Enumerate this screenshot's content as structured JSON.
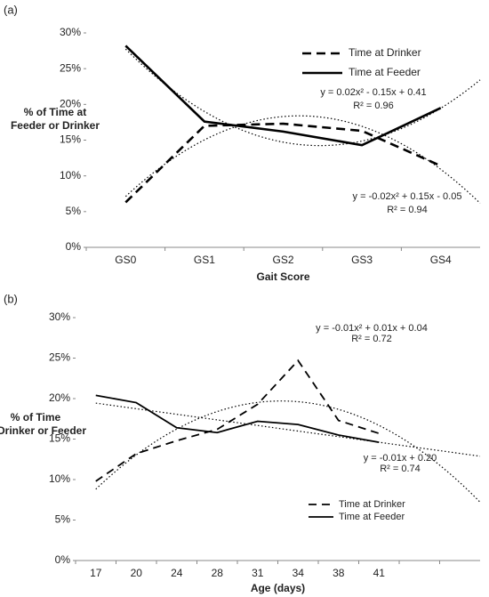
{
  "chart_data": [
    {
      "type": "line",
      "panel_label": "(a)",
      "ylabel": [
        "% of Time at",
        "Feeder or Drinker"
      ],
      "xlabel": "Gait Score",
      "categories": [
        "GS0",
        "GS1",
        "GS2",
        "GS3",
        "GS4"
      ],
      "series": [
        {
          "name": "Time at Drinker",
          "color": "#000000",
          "style": "dashed",
          "trend": 2,
          "values": [
            6.3,
            17.0,
            17.3,
            16.3,
            11.4
          ]
        },
        {
          "name": "Time at Feeder",
          "color": "#000000",
          "style": "solid",
          "trend": 2,
          "values": [
            28.2,
            17.6,
            16.2,
            14.3,
            19.5
          ]
        }
      ],
      "ylim": [
        0,
        30
      ],
      "yticks": [
        {
          "value": 0,
          "label": "0%"
        },
        {
          "value": 5,
          "label": "5%"
        },
        {
          "value": 10,
          "label": "10%"
        },
        {
          "value": 15,
          "label": "15%"
        },
        {
          "value": 20,
          "label": "20%"
        },
        {
          "value": 25,
          "label": "25%"
        },
        {
          "value": 30,
          "label": "30%"
        }
      ],
      "legend": "upper right",
      "annotations": [
        "y = 0.02x² - 0.15x + 0.41",
        "R² = 0.96",
        "y = -0.02x² + 0.15x - 0.05",
        "R² = 0.94"
      ]
    },
    {
      "type": "line",
      "panel_label": "(b)",
      "ylabel": [
        "% of Time",
        "at Drinker or Feeder"
      ],
      "xlabel": "Age (days)",
      "categories": [
        "17",
        "20",
        "24",
        "28",
        "31",
        "34",
        "38",
        "41",
        null,
        null
      ],
      "series": [
        {
          "name": "Time at Drinker",
          "color": "#000000",
          "style": "dashed",
          "trend": 2,
          "values": [
            9.8,
            13.2,
            14.8,
            16.2,
            19.3,
            24.7,
            17.3,
            15.7,
            null,
            null
          ]
        },
        {
          "name": "Time at Feeder",
          "color": "#000000",
          "style": "solid",
          "trend": 1,
          "values": [
            20.4,
            19.5,
            16.4,
            15.8,
            17.2,
            16.8,
            15.5,
            14.6,
            null,
            null
          ]
        }
      ],
      "ylim": [
        0,
        30
      ],
      "yticks": [
        {
          "value": 0,
          "label": "0%"
        },
        {
          "value": 5,
          "label": "5%"
        },
        {
          "value": 10,
          "label": "10%"
        },
        {
          "value": 15,
          "label": "15%"
        },
        {
          "value": 20,
          "label": "20%"
        },
        {
          "value": 25,
          "label": "25%"
        },
        {
          "value": 30,
          "label": "30%"
        }
      ],
      "legend": "lower right",
      "annotations": [
        "y = -0.01x² + 0.01x + 0.04",
        "R² = 0.72",
        "y = -0.01x + 0.20",
        "R² = 0.74"
      ]
    }
  ]
}
